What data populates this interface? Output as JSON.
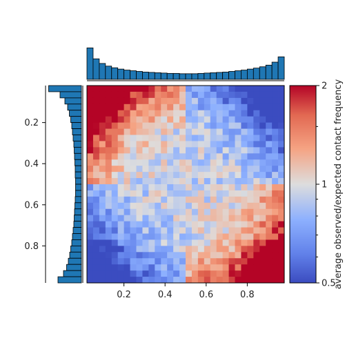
{
  "chart_data": {
    "type": "heatmap",
    "title": "",
    "x_ticks": [
      "0.2",
      "0.4",
      "0.6",
      "0.8"
    ],
    "x_tick_values": [
      0.2,
      0.4,
      0.6,
      0.8
    ],
    "y_ticks": [
      "0.2",
      "0.4",
      "0.6",
      "0.8"
    ],
    "y_tick_values": [
      0.2,
      0.4,
      0.6,
      0.8
    ],
    "xlim": [
      0.02,
      0.98
    ],
    "ylim": [
      0.02,
      0.98
    ],
    "grid_size": 32,
    "colormap": "coolwarm",
    "color_low": "#3b4cc0",
    "color_mid": "#dddddd",
    "color_high": "#b40426",
    "colorbar": {
      "label": "average observed/expected contact frequency",
      "scale": "log",
      "range": [
        0.5,
        2
      ],
      "ticks": [
        "2",
        "1",
        "0.5"
      ],
      "tick_values": [
        2,
        1,
        0.5
      ]
    },
    "top_marginal": {
      "type": "bar",
      "orientation": "downward",
      "description_values": [
        0.95,
        0.62,
        0.48,
        0.4,
        0.35,
        0.31,
        0.28,
        0.26,
        0.24,
        0.22,
        0.21,
        0.2,
        0.19,
        0.18,
        0.18,
        0.17,
        0.17,
        0.17,
        0.18,
        0.19,
        0.2,
        0.21,
        0.22,
        0.24,
        0.26,
        0.28,
        0.31,
        0.34,
        0.38,
        0.43,
        0.52,
        0.68
      ]
    },
    "left_marginal": {
      "type": "bar",
      "orientation": "leftward",
      "description_values": [
        0.95,
        0.62,
        0.48,
        0.4,
        0.35,
        0.31,
        0.28,
        0.26,
        0.24,
        0.22,
        0.21,
        0.2,
        0.19,
        0.18,
        0.18,
        0.17,
        0.17,
        0.17,
        0.18,
        0.19,
        0.2,
        0.21,
        0.22,
        0.24,
        0.26,
        0.28,
        0.31,
        0.34,
        0.38,
        0.43,
        0.52,
        0.68
      ]
    },
    "bar_color": "#1f77b4"
  }
}
